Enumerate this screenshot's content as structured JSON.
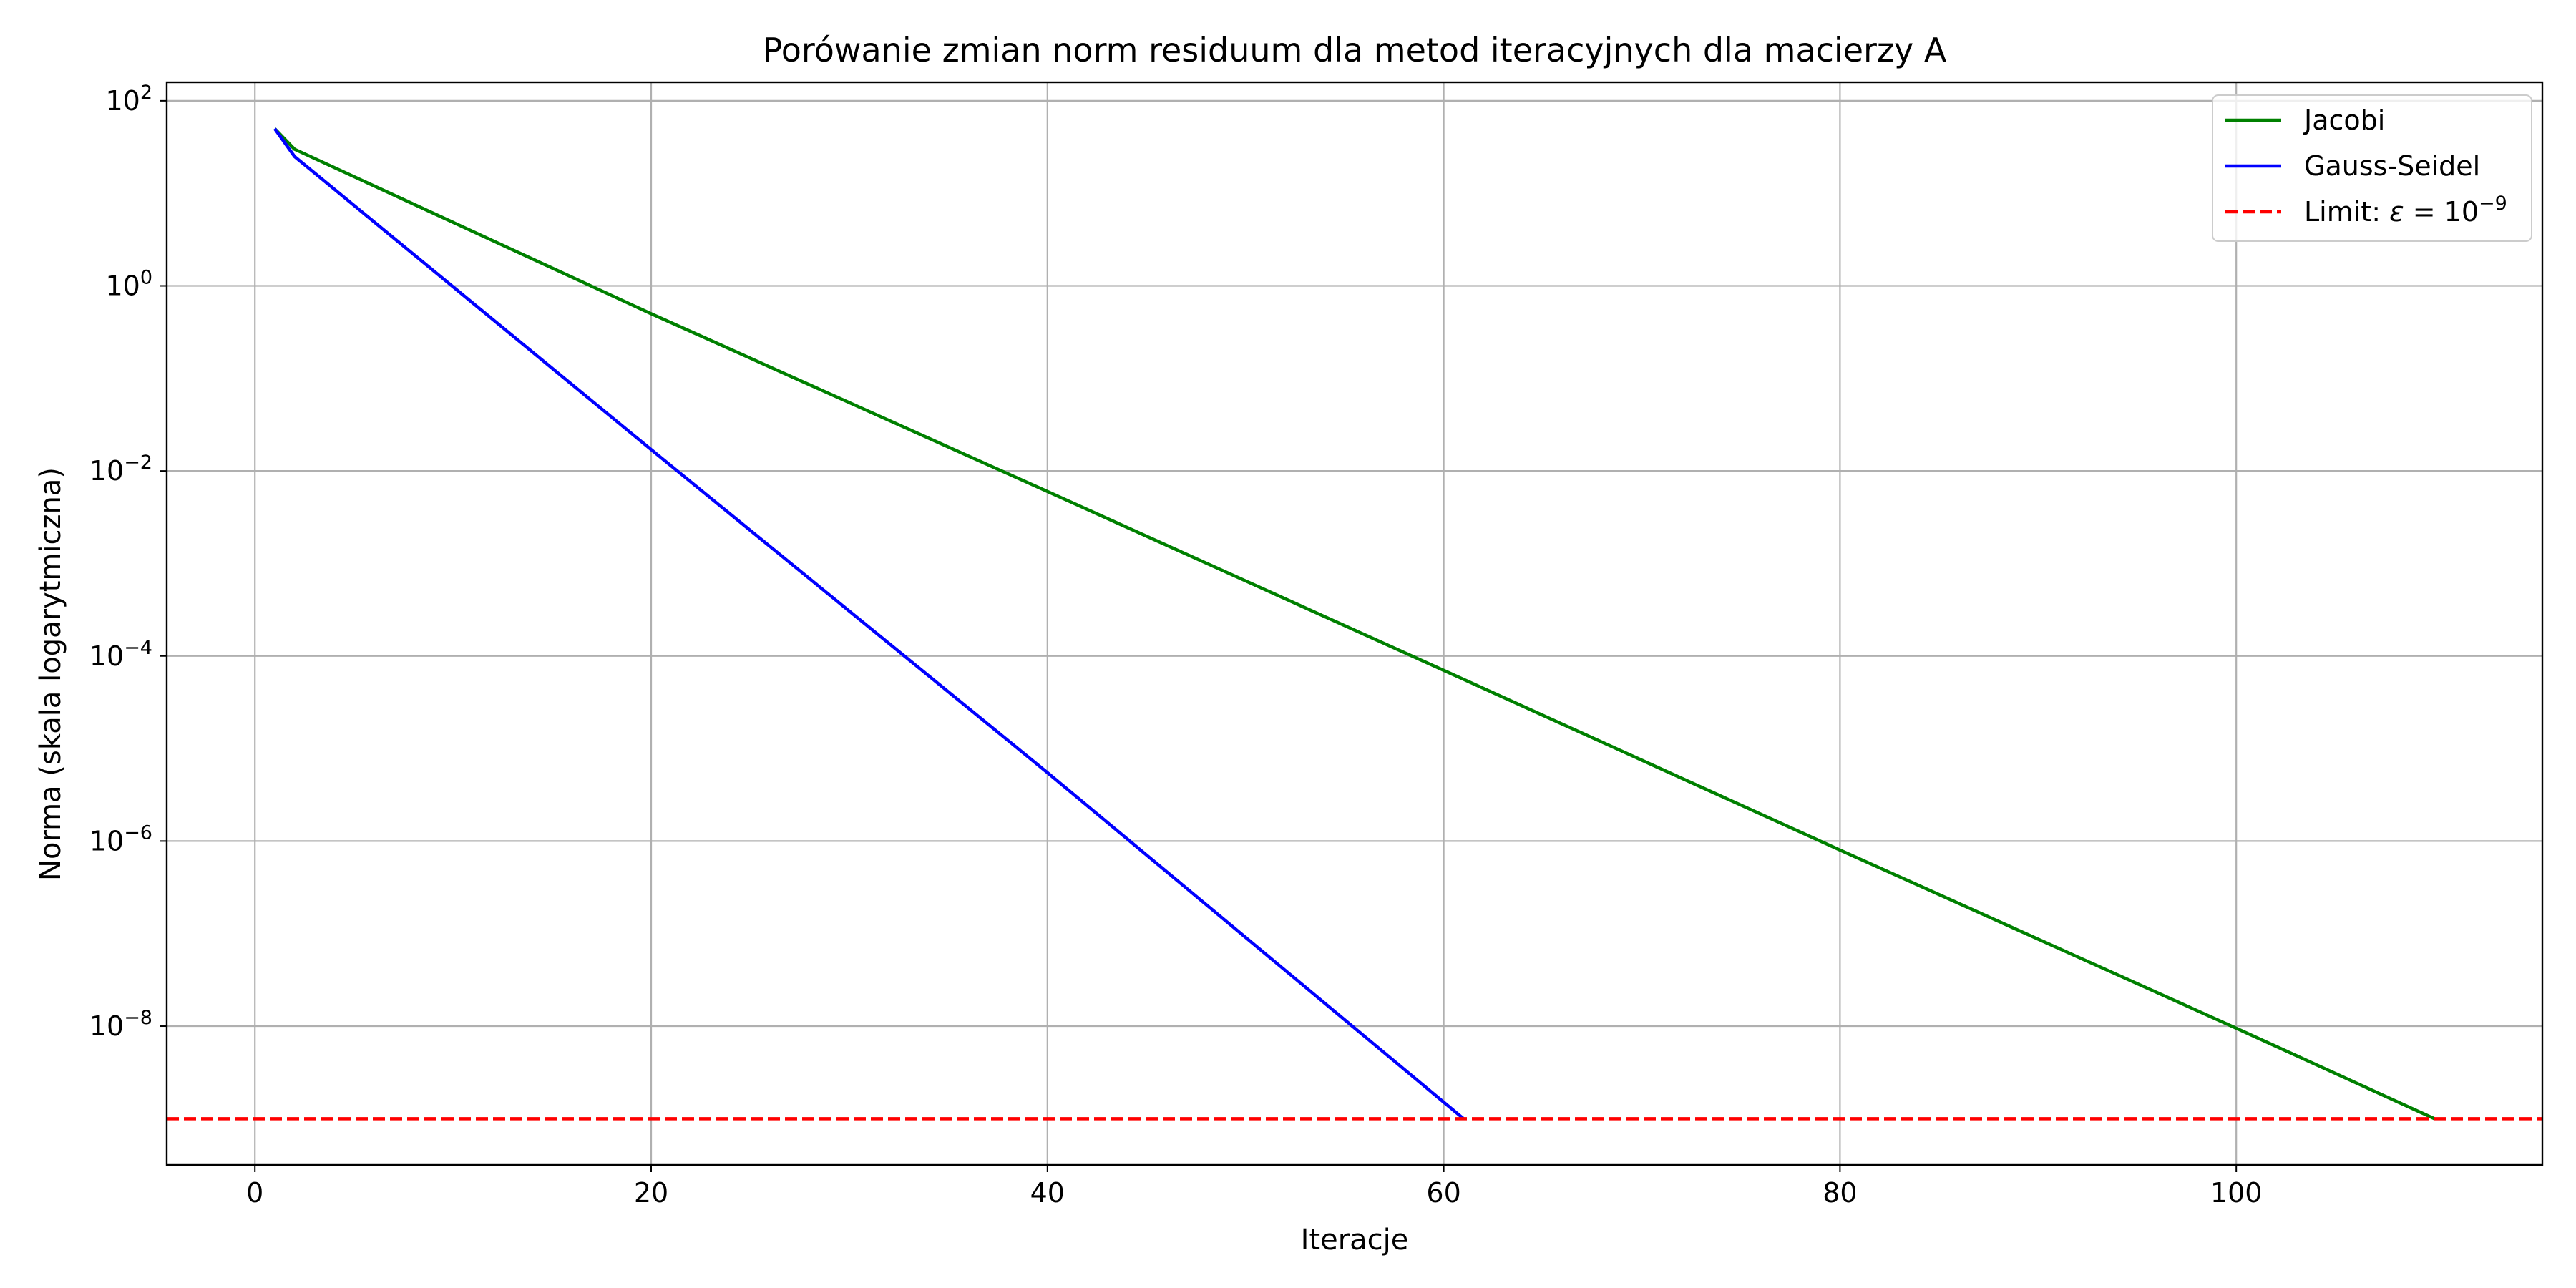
{
  "chart_data": {
    "type": "line",
    "title": "Porówanie zmian norm residuum dla metod iteracyjnych dla macierzy A",
    "xlabel": "Iteracje",
    "ylabel": "Norma (skala logarytmiczna)",
    "xlim": [
      -4.45,
      115.45
    ],
    "ylim_log10": [
      -9.5,
      2.2
    ],
    "y_scale": "log",
    "grid": true,
    "legend_position": "top-right",
    "x_ticks": [
      0,
      20,
      40,
      60,
      80,
      100
    ],
    "x_tick_labels": [
      "0",
      "20",
      "40",
      "60",
      "80",
      "100"
    ],
    "y_ticks_log10": [
      2,
      0,
      -2,
      -4,
      -6,
      -8
    ],
    "y_tick_labels": [
      {
        "base": "10",
        "exp": "2"
      },
      {
        "base": "10",
        "exp": "0"
      },
      {
        "base": "10",
        "exp": "−2"
      },
      {
        "base": "10",
        "exp": "−4"
      },
      {
        "base": "10",
        "exp": "−6"
      },
      {
        "base": "10",
        "exp": "−8"
      }
    ],
    "series": [
      {
        "name": "Jacobi",
        "color": "#008000",
        "style": "solid",
        "points": [
          [
            1,
            50
          ],
          [
            2,
            30
          ],
          [
            20,
            0.5
          ],
          [
            40,
            0.006
          ],
          [
            60,
            7e-05
          ],
          [
            80,
            8e-07
          ],
          [
            100,
            9.5e-09
          ],
          [
            110,
            1e-09
          ]
        ]
      },
      {
        "name": "Gauss-Seidel",
        "color": "#0000ff",
        "style": "solid",
        "points": [
          [
            1,
            50
          ],
          [
            2,
            25
          ],
          [
            20,
            0.017
          ],
          [
            40,
            5.5e-06
          ],
          [
            61,
            1e-09
          ]
        ]
      }
    ],
    "reference_line": {
      "name_prefix": "Limit: ",
      "name_symbol": "ε",
      "name_middle": " = 10",
      "name_exp": "−9",
      "value": 1e-09,
      "color": "#ff0000",
      "style": "dashed"
    }
  }
}
